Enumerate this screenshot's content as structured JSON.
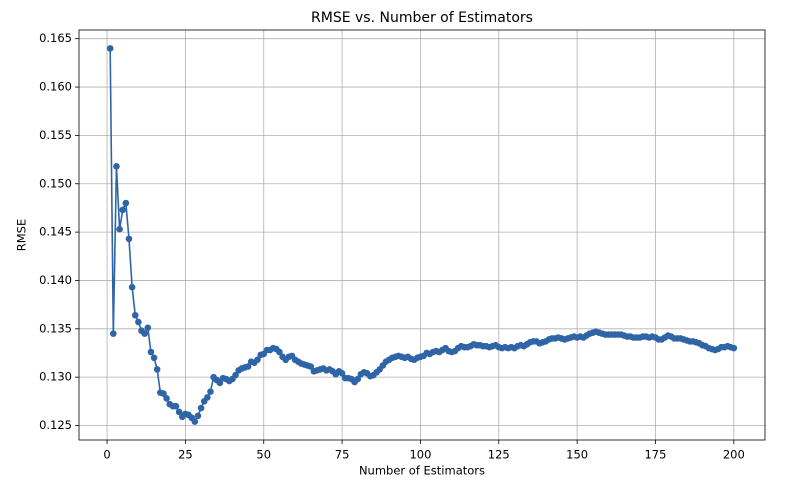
{
  "chart_data": {
    "type": "line",
    "title": "RMSE vs. Number of Estimators",
    "x_label": "Number of Estimators",
    "y_label": "RMSE",
    "x": [
      1,
      2,
      3,
      4,
      5,
      6,
      7,
      8,
      9,
      10,
      11,
      12,
      13,
      14,
      15,
      16,
      17,
      18,
      19,
      20,
      21,
      22,
      23,
      24,
      25,
      26,
      27,
      28,
      29,
      30,
      31,
      32,
      33,
      34,
      35,
      36,
      37,
      38,
      39,
      40,
      41,
      42,
      43,
      44,
      45,
      46,
      47,
      48,
      49,
      50,
      51,
      52,
      53,
      54,
      55,
      56,
      57,
      58,
      59,
      60,
      61,
      62,
      63,
      64,
      65,
      66,
      67,
      68,
      69,
      70,
      71,
      72,
      73,
      74,
      75,
      76,
      77,
      78,
      79,
      80,
      81,
      82,
      83,
      84,
      85,
      86,
      87,
      88,
      89,
      90,
      91,
      92,
      93,
      94,
      95,
      96,
      97,
      98,
      99,
      100,
      101,
      102,
      103,
      104,
      105,
      106,
      107,
      108,
      109,
      110,
      111,
      112,
      113,
      114,
      115,
      116,
      117,
      118,
      119,
      120,
      121,
      122,
      123,
      124,
      125,
      126,
      127,
      128,
      129,
      130,
      131,
      132,
      133,
      134,
      135,
      136,
      137,
      138,
      139,
      140,
      141,
      142,
      143,
      144,
      145,
      146,
      147,
      148,
      149,
      150,
      151,
      152,
      153,
      154,
      155,
      156,
      157,
      158,
      159,
      160,
      161,
      162,
      163,
      164,
      165,
      166,
      167,
      168,
      169,
      170,
      171,
      172,
      173,
      174,
      175,
      176,
      177,
      178,
      179,
      180,
      181,
      182,
      183,
      184,
      185,
      186,
      187,
      188,
      189,
      190,
      191,
      192,
      193,
      194,
      195,
      196,
      197,
      198,
      199,
      200
    ],
    "series": [
      {
        "color": "#2f65a7",
        "values": [
          0.164,
          0.1345,
          0.1518,
          0.1453,
          0.1473,
          0.148,
          0.1443,
          0.1393,
          0.1364,
          0.1357,
          0.1348,
          0.1345,
          0.1351,
          0.1326,
          0.132,
          0.1308,
          0.1284,
          0.1283,
          0.1278,
          0.1272,
          0.127,
          0.127,
          0.1264,
          0.1259,
          0.1262,
          0.1261,
          0.1258,
          0.1254,
          0.126,
          0.1268,
          0.1275,
          0.1279,
          0.1285,
          0.13,
          0.1297,
          0.1294,
          0.1299,
          0.1298,
          0.1296,
          0.1298,
          0.1302,
          0.1307,
          0.1309,
          0.131,
          0.1311,
          0.1316,
          0.1315,
          0.1318,
          0.1323,
          0.1324,
          0.1328,
          0.1328,
          0.133,
          0.1329,
          0.1326,
          0.1321,
          0.1318,
          0.1321,
          0.1322,
          0.1318,
          0.1316,
          0.1314,
          0.1313,
          0.1312,
          0.1311,
          0.1306,
          0.1307,
          0.1308,
          0.1309,
          0.1307,
          0.1308,
          0.1306,
          0.1303,
          0.1306,
          0.1304,
          0.1299,
          0.1299,
          0.1298,
          0.1295,
          0.1298,
          0.1303,
          0.1305,
          0.1304,
          0.1301,
          0.1302,
          0.1305,
          0.1308,
          0.1312,
          0.1316,
          0.1318,
          0.132,
          0.1321,
          0.1322,
          0.1321,
          0.132,
          0.1321,
          0.1319,
          0.1318,
          0.132,
          0.1321,
          0.1322,
          0.1325,
          0.1324,
          0.1326,
          0.1327,
          0.1326,
          0.1328,
          0.133,
          0.1327,
          0.1326,
          0.1327,
          0.133,
          0.1332,
          0.1331,
          0.1331,
          0.1332,
          0.1334,
          0.1333,
          0.1333,
          0.1332,
          0.1332,
          0.1331,
          0.1332,
          0.1333,
          0.1331,
          0.133,
          0.1331,
          0.133,
          0.1331,
          0.133,
          0.1332,
          0.1333,
          0.1332,
          0.1334,
          0.1336,
          0.1337,
          0.1337,
          0.1335,
          0.1336,
          0.1337,
          0.1339,
          0.134,
          0.134,
          0.1341,
          0.134,
          0.1339,
          0.134,
          0.1341,
          0.1342,
          0.1341,
          0.1342,
          0.1341,
          0.1343,
          0.1345,
          0.1346,
          0.1347,
          0.1346,
          0.1345,
          0.1344,
          0.1344,
          0.1344,
          0.1344,
          0.1344,
          0.1344,
          0.1343,
          0.1342,
          0.1342,
          0.1341,
          0.1341,
          0.1341,
          0.1342,
          0.1342,
          0.1341,
          0.1342,
          0.1341,
          0.1339,
          0.1339,
          0.1341,
          0.1343,
          0.1342,
          0.134,
          0.134,
          0.134,
          0.1339,
          0.1338,
          0.1337,
          0.1337,
          0.1336,
          0.1335,
          0.1333,
          0.1332,
          0.133,
          0.1329,
          0.1328,
          0.1329,
          0.1331,
          0.1331,
          0.1332,
          0.1331,
          0.133
        ]
      }
    ],
    "xlim": [
      -8.95,
      209.95
    ],
    "ylim": [
      0.1235,
      0.1659
    ],
    "xticks": [
      0,
      25,
      50,
      75,
      100,
      125,
      150,
      175,
      200
    ],
    "yticks": [
      0.125,
      {
        "value": 0.13,
        "label": "0.130"
      },
      0.135,
      {
        "value": 0.14,
        "label": "0.140"
      },
      0.145,
      {
        "value": 0.15,
        "label": "0.150"
      },
      0.155,
      {
        "value": 0.16,
        "label": "0.160"
      },
      0.165
    ],
    "grid": true
  }
}
